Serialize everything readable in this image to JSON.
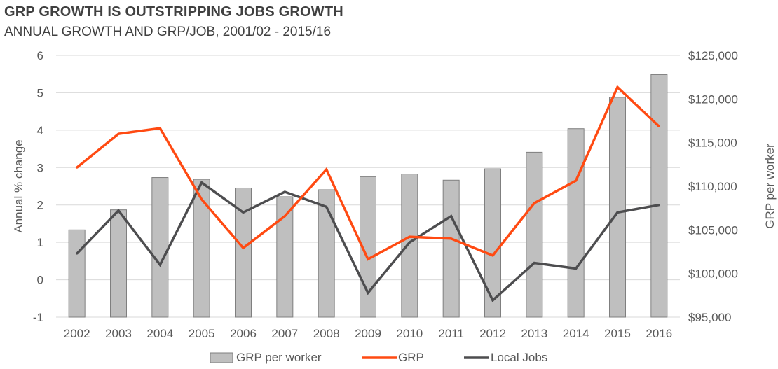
{
  "title": "GRP GROWTH IS OUTSTRIPPING JOBS GROWTH",
  "subtitle": "ANNUAL GROWTH AND GRP/JOB, 2001/02 - 2015/16",
  "chart_data": {
    "type": "bar",
    "categories": [
      "2002",
      "2003",
      "2004",
      "2005",
      "2006",
      "2007",
      "2008",
      "2009",
      "2010",
      "2011",
      "2012",
      "2013",
      "2014",
      "2015",
      "2016"
    ],
    "ylabel": "Annual % change",
    "ylabel_right": "GRP per worker",
    "ylim": [
      -1,
      6
    ],
    "yticks": [
      -1,
      0,
      1,
      2,
      3,
      4,
      5,
      6
    ],
    "ylim_right": [
      95000,
      125000
    ],
    "yticks_right_labels": [
      "$95,000",
      "$100,000",
      "$105,000",
      "$110,000",
      "$115,000",
      "$120,000",
      "$125,000"
    ],
    "grid": true,
    "legend_position": "bottom",
    "series": [
      {
        "name": "GRP per worker",
        "type": "bar",
        "axis": "right",
        "color": "#bfbfbf",
        "values": [
          105000,
          107300,
          111000,
          110800,
          109800,
          108800,
          109600,
          111100,
          111400,
          110700,
          112000,
          113900,
          116600,
          120200,
          122800
        ]
      },
      {
        "name": "GRP",
        "type": "line",
        "axis": "left",
        "color": "#ff4a12",
        "values": [
          3.0,
          3.9,
          4.05,
          2.15,
          0.85,
          1.7,
          2.95,
          0.55,
          1.15,
          1.1,
          0.65,
          2.05,
          2.65,
          5.15,
          4.1
        ]
      },
      {
        "name": "Local Jobs",
        "type": "line",
        "axis": "left",
        "color": "#4d4d4f",
        "values": [
          0.7,
          1.85,
          0.4,
          2.6,
          1.8,
          2.35,
          1.95,
          -0.35,
          1.0,
          1.7,
          -0.55,
          0.45,
          0.3,
          1.8,
          2.0
        ]
      }
    ]
  }
}
